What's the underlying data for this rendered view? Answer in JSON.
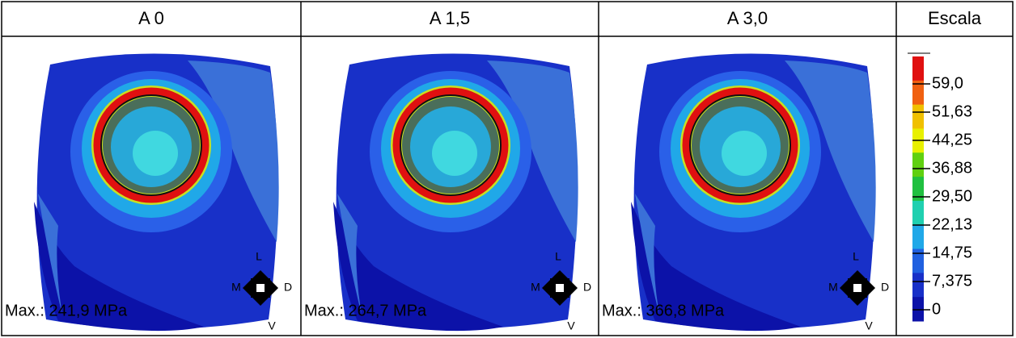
{
  "header": {
    "columns": [
      "A 0",
      "A 1,5",
      "A 3,0",
      "Escala"
    ]
  },
  "panels": [
    {
      "max": "Max.: 241,9 MPa",
      "compass": {
        "top": "L",
        "left": "M",
        "right": "D",
        "bottom": "V"
      }
    },
    {
      "max": "Max.: 264,7 MPa",
      "compass": {
        "top": "L",
        "left": "M",
        "right": "D",
        "bottom": "V"
      }
    },
    {
      "max": "Max.: 366,8 MPa",
      "compass": {
        "top": "L",
        "left": "M",
        "right": "D",
        "bottom": "V"
      }
    }
  ],
  "scale": {
    "labels": [
      "59,0",
      "51,63",
      "44,25",
      "36,88",
      "29,50",
      "22,13",
      "14,75",
      "7,375",
      "0"
    ]
  }
}
